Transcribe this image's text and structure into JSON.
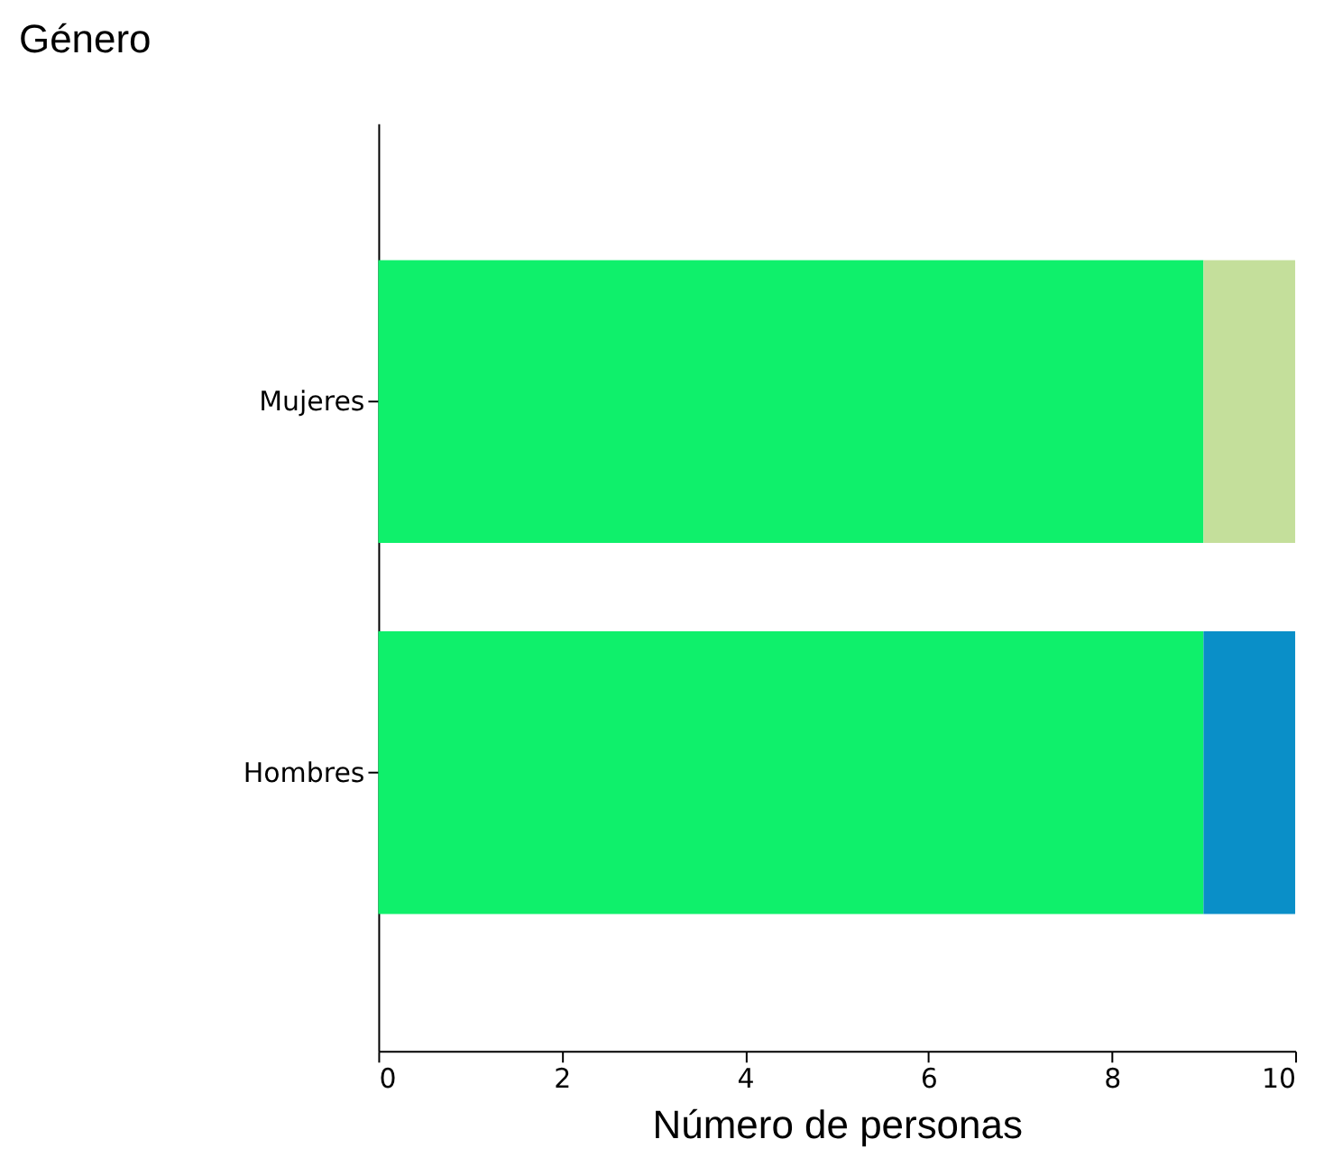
{
  "chart_data": {
    "type": "bar",
    "orientation": "horizontal",
    "stacked": true,
    "ylabel": "Género",
    "xlabel": "Número de personas",
    "categories": [
      "Mujeres",
      "Hombres"
    ],
    "series": [
      {
        "color": "#0ff06b",
        "values": [
          9,
          9
        ]
      },
      {
        "colors": [
          "#c4df9b",
          "#0a8fc8"
        ],
        "values": [
          1,
          1
        ]
      }
    ],
    "xlim": [
      0,
      10
    ],
    "xticks": [
      0,
      2,
      4,
      6,
      8,
      10
    ],
    "grid": false
  }
}
